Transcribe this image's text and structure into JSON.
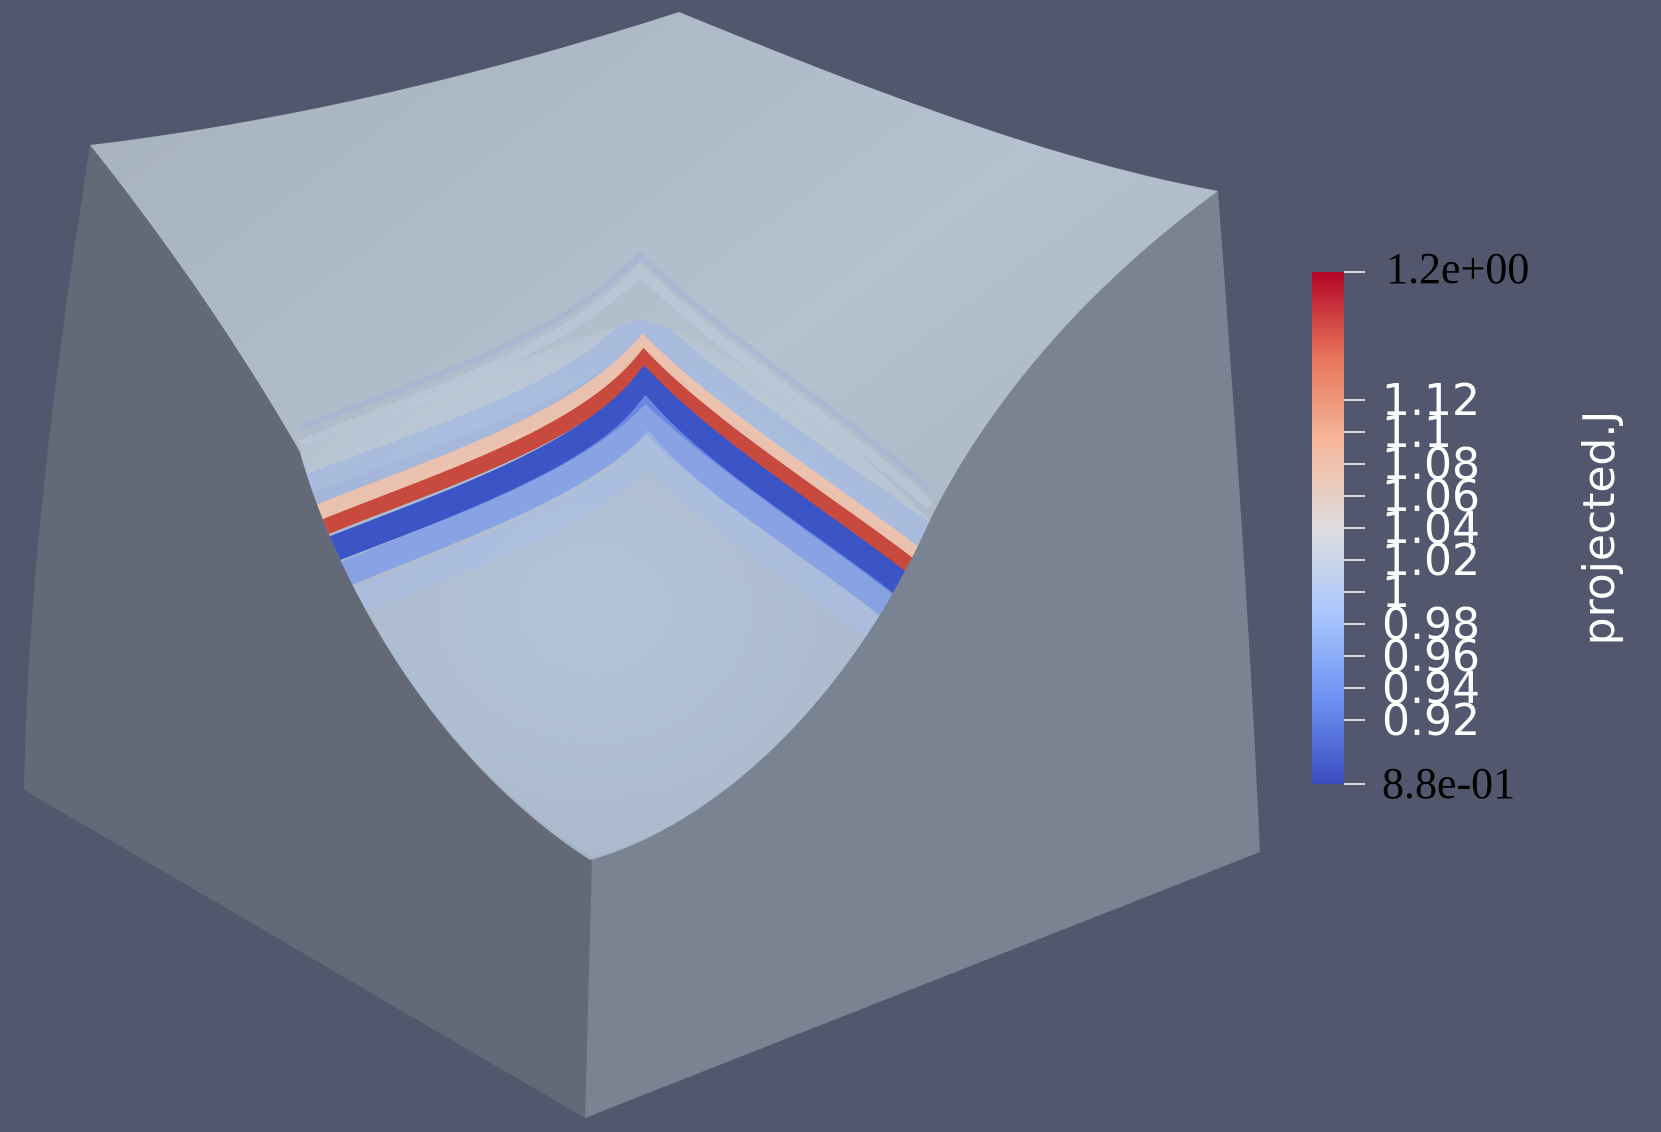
{
  "viewport": {
    "background_color": "#52576e",
    "object": "cut-cube-mesh",
    "face_colors": {
      "left": "#636977",
      "right": "#7a8392",
      "top": "#a9b4c0"
    }
  },
  "scalar_bar": {
    "title": "projected.J",
    "colormap": "Cool to Warm",
    "range": [
      0.88,
      1.2
    ],
    "color_stops": [
      "#3b4cc0",
      "#6f92f3",
      "#aac7fd",
      "#dddddd",
      "#f7b89c",
      "#e7755b",
      "#b40426"
    ],
    "max_label": "1.2e+00",
    "min_label": "8.8e-01",
    "tick_labels": [
      "1.12",
      "1.1",
      "1.08",
      "1.06",
      "1.04",
      "1.02",
      "1",
      "0.98",
      "0.96",
      "0.94",
      "0.92"
    ],
    "tick_values": [
      1.12,
      1.1,
      1.08,
      1.06,
      1.04,
      1.02,
      1.0,
      0.98,
      0.96,
      0.94,
      0.92
    ]
  }
}
